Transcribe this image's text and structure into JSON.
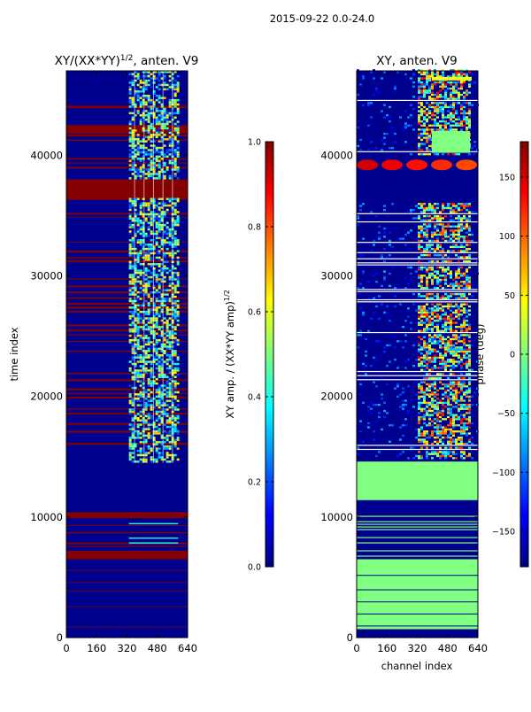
{
  "figure": {
    "suptitle": "2015-09-22 0.0-24.0"
  },
  "colors": {
    "jet": [
      "#00007f",
      "#0000ff",
      "#007fff",
      "#00ffff",
      "#7fff7f",
      "#ffff00",
      "#ff7f00",
      "#ff0000",
      "#7f0000"
    ],
    "background": "#ffffff",
    "frame": "#000000",
    "navy": "#00008f",
    "darkred": "#850000",
    "green": "#80ff80",
    "gridline": "#ffffff"
  },
  "chart_data": [
    {
      "type": "heatmap",
      "id": "amplitude",
      "title_main": "XY/(XX*YY)",
      "title_sup": "1/2",
      "title_tail": ", anten. V9",
      "xlabel": "",
      "ylabel": "time index",
      "xlim": [
        0,
        640
      ],
      "ylim": [
        0,
        47000
      ],
      "xticks": [
        0,
        160,
        320,
        480,
        640
      ],
      "xtick_labels": [
        "0",
        "160",
        "320",
        "480",
        "640"
      ],
      "yticks": [
        0,
        10000,
        20000,
        30000,
        40000
      ],
      "ytick_labels": [
        "0",
        "10000",
        "20000",
        "30000",
        "40000"
      ],
      "colorbar": {
        "label_main": "XY amp. / (XX*YY amp)",
        "label_sup": "1/2",
        "range": [
          0.0,
          1.0
        ],
        "ticks": [
          0.0,
          0.2,
          0.4,
          0.6,
          0.8,
          1.0
        ],
        "tick_labels": [
          "0.0",
          "0.2",
          "0.4",
          "0.6",
          "0.8",
          "1.0"
        ],
        "colormap": "jet"
      },
      "background_value": 0.0,
      "bands": [
        {
          "t0": 6500,
          "t1": 7200,
          "value": 1.0
        },
        {
          "t0": 9900,
          "t1": 10400,
          "value": 1.0
        },
        {
          "t0": 36300,
          "t1": 38000,
          "value": 1.0
        },
        {
          "t0": 41800,
          "t1": 42500,
          "value": 1.0
        },
        {
          "t0": 43900,
          "t1": 44100,
          "value": 1.0
        }
      ],
      "striped_regions": [
        {
          "t0": 14700,
          "t1": 36300,
          "value": 1.0
        },
        {
          "t0": 38000,
          "t1": 41800,
          "value": 1.0
        },
        {
          "t0": 7200,
          "t1": 9800,
          "value": 1.0
        }
      ],
      "active_channel_range": [
        330,
        590
      ],
      "active_time_ranges": [
        [
          14500,
          36300
        ],
        [
          38000,
          47000
        ]
      ]
    },
    {
      "type": "heatmap",
      "id": "phase",
      "title_main": "XY, anten. V9",
      "xlabel": "channel index",
      "ylabel": "",
      "xlim": [
        0,
        640
      ],
      "ylim": [
        0,
        47000
      ],
      "xticks": [
        0,
        160,
        320,
        480,
        640
      ],
      "xtick_labels": [
        "0",
        "160",
        "320",
        "480",
        "640"
      ],
      "yticks": [
        0,
        10000,
        20000,
        30000,
        40000
      ],
      "ytick_labels": [
        "0",
        "10000",
        "20000",
        "30000",
        "40000"
      ],
      "colorbar": {
        "label_main": "phase (deg)",
        "range": [
          -180,
          180
        ],
        "ticks": [
          150,
          100,
          50,
          0,
          -50,
          -100,
          -150
        ],
        "tick_labels": [
          "150",
          "100",
          "50",
          "0",
          "−50",
          "−100",
          "−150"
        ],
        "colormap": "jet"
      },
      "background_value": -180,
      "bands": [
        {
          "t0": 600,
          "t1": 1000,
          "value": 0
        },
        {
          "t0": 6500,
          "t1": 600,
          "value": 0
        },
        {
          "t0": 10300,
          "t1": 11400,
          "value": -180
        },
        {
          "t0": 11400,
          "t1": 14600,
          "value": 0
        },
        {
          "t0": 40500,
          "t1": 41700,
          "value": 0
        }
      ],
      "green_regions": [
        [
          700,
          6500
        ],
        [
          11400,
          14600
        ]
      ],
      "active_channel_range": [
        320,
        600
      ],
      "active_time_ranges": [
        [
          14800,
          36000
        ],
        [
          40000,
          47000
        ]
      ],
      "blob_row": {
        "t0": 38200,
        "t1": 40200,
        "value": 150
      }
    }
  ]
}
